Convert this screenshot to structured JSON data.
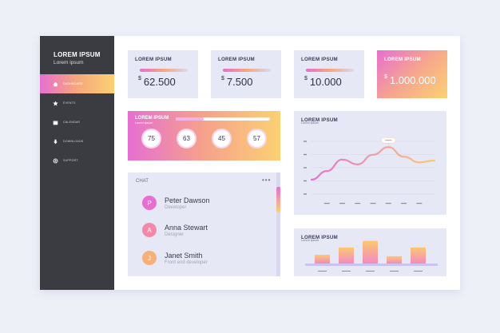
{
  "sidebar": {
    "brand_title": "LOREM IPSUM",
    "brand_sub": "Lorem ipsum",
    "items": [
      {
        "label": "DASHBOARD",
        "icon": "home-icon",
        "active": true
      },
      {
        "label": "EVENTS",
        "icon": "star-icon",
        "active": false
      },
      {
        "label": "CALENDAR",
        "icon": "calendar-icon",
        "active": false
      },
      {
        "label": "DOWNLOADS",
        "icon": "download-icon",
        "active": false
      },
      {
        "label": "SUPPORT",
        "icon": "gear-icon",
        "active": false
      }
    ]
  },
  "cards": [
    {
      "label": "LOREM IPSUM",
      "currency": "$",
      "value": "62.500"
    },
    {
      "label": "LOREM IPSUM",
      "currency": "$",
      "value": "7.500"
    },
    {
      "label": "LOREM IPSUM",
      "currency": "$",
      "value": "10.000"
    },
    {
      "label": "LOREM IPSUM",
      "currency": "$",
      "value": "1.000.000"
    }
  ],
  "stats": {
    "label": "LOREM IPSUM",
    "sub": "Lorem ipsum",
    "progress": 0.3,
    "values": [
      "75",
      "63",
      "45",
      "57"
    ]
  },
  "line_chart": {
    "label": "LOREM IPSUM",
    "sub": "Lorem ipsum"
  },
  "chat": {
    "title": "CHAT",
    "contacts": [
      {
        "initial": "P",
        "name": "Peter Dawson",
        "role": "Developer",
        "color": "#e66fd1"
      },
      {
        "initial": "A",
        "name": "Anna Stewart",
        "role": "Designer",
        "color": "#f289a8"
      },
      {
        "initial": "J",
        "name": "Janet Smith",
        "role": "Front end developer",
        "color": "#f7b078"
      }
    ]
  },
  "bar_chart": {
    "label": "LOREM IPSUM",
    "sub": "Lorem ipsum"
  },
  "colors": {
    "accent_start": "#e66fd1",
    "accent_mid": "#f7a77c",
    "accent_end": "#fbd173",
    "sidebar": "#3b3c41",
    "card": "#e6e8f5"
  },
  "chart_data": [
    {
      "type": "line",
      "x": [
        0,
        1,
        2,
        3,
        4,
        5,
        6,
        7,
        8
      ],
      "values": [
        30,
        48,
        72,
        62,
        82,
        98,
        78,
        66,
        70
      ],
      "ylim": [
        0,
        110
      ],
      "highlight_index": 5,
      "grid": true,
      "title": "LOREM IPSUM"
    },
    {
      "type": "bar",
      "categories": [
        "1",
        "2",
        "3",
        "4",
        "5"
      ],
      "values": [
        12,
        22,
        31,
        10,
        22
      ],
      "ylim": [
        0,
        35
      ],
      "title": "LOREM IPSUM"
    }
  ]
}
